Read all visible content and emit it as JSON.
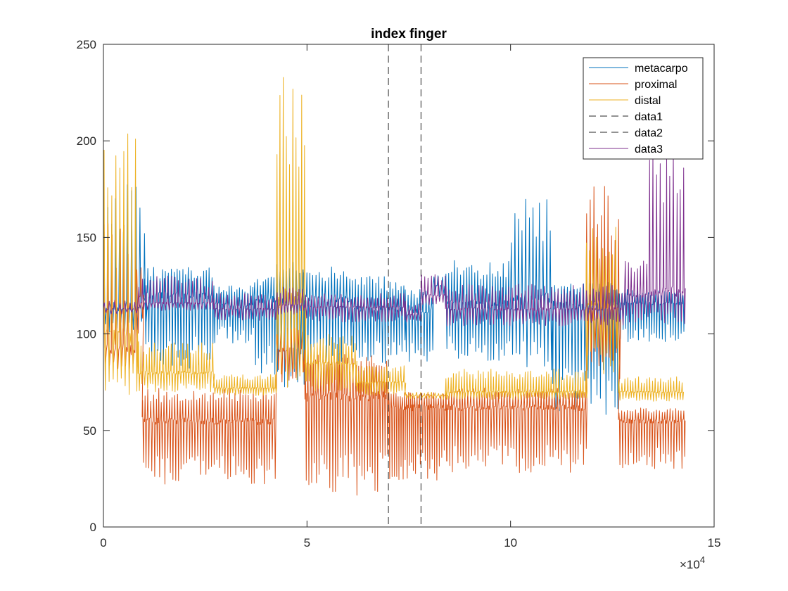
{
  "chart_data": {
    "type": "line",
    "title": "index finger",
    "xlabel": "",
    "ylabel": "",
    "xlim": [
      0,
      150000
    ],
    "ylim": [
      0,
      250
    ],
    "x_ticks": [
      0,
      50000,
      100000,
      150000
    ],
    "x_tick_labels": [
      "0",
      "5",
      "10",
      "15"
    ],
    "x_exponent_label": "×10",
    "x_exponent_power": "4",
    "y_ticks": [
      0,
      50,
      100,
      150,
      200,
      250
    ],
    "y_tick_labels": [
      "0",
      "50",
      "100",
      "150",
      "200",
      "250"
    ],
    "grid": false,
    "legend_position": "top-right",
    "series": [
      {
        "name": "metacarpo",
        "color": "#0072BD",
        "style": "solid",
        "segments": [
          {
            "x": [
              0,
              10000
            ],
            "base": 115,
            "high": 180,
            "low": 100,
            "period": 1000
          },
          {
            "x": [
              10000,
              27000
            ],
            "base": 120,
            "high": 135,
            "low": 82,
            "period": 700
          },
          {
            "x": [
              27000,
              37000
            ],
            "base": 115,
            "high": 125,
            "low": 95,
            "period": 650
          },
          {
            "x": [
              37000,
              42500
            ],
            "base": 118,
            "high": 130,
            "low": 78,
            "period": 650
          },
          {
            "x": [
              42500,
              49000
            ],
            "base": 118,
            "high": 140,
            "low": 72,
            "period": 750
          },
          {
            "x": [
              49000,
              61000
            ],
            "base": 118,
            "high": 135,
            "low": 83,
            "period": 750
          },
          {
            "x": [
              61000,
              74000
            ],
            "base": 113,
            "high": 130,
            "low": 84,
            "period": 700
          },
          {
            "x": [
              74000,
              81000
            ],
            "base": 112,
            "high": 123,
            "low": 82,
            "period": 700
          },
          {
            "x": [
              81000,
              84000
            ],
            "base": 125,
            "high": 132,
            "low": 118,
            "period": 1000
          },
          {
            "x": [
              84000,
              100000
            ],
            "base": 116,
            "high": 138,
            "low": 86,
            "period": 700
          },
          {
            "x": [
              100000,
              110000
            ],
            "base": 118,
            "high": 170,
            "low": 80,
            "period": 850
          },
          {
            "x": [
              110000,
              126000
            ],
            "base": 115,
            "high": 128,
            "low": 58,
            "period": 750
          },
          {
            "x": [
              126000,
              142500
            ],
            "base": 116,
            "high": 123,
            "low": 96,
            "period": 650
          }
        ]
      },
      {
        "name": "proximal",
        "color": "#D95319",
        "style": "solid",
        "segments": [
          {
            "x": [
              0,
              8000
            ],
            "base": 92,
            "high": 160,
            "low": 82,
            "period": 1000
          },
          {
            "x": [
              8000,
              9500
            ],
            "base": 120,
            "high": 140,
            "low": 100,
            "period": 1000
          },
          {
            "x": [
              9500,
              42500
            ],
            "base": 55,
            "high": 72,
            "low": 22,
            "period": 650
          },
          {
            "x": [
              42500,
              49500
            ],
            "base": 92,
            "high": 105,
            "low": 75,
            "period": 900
          },
          {
            "x": [
              49500,
              70000
            ],
            "base": 68,
            "high": 90,
            "low": 16,
            "period": 650
          },
          {
            "x": [
              70000,
              84000
            ],
            "base": 62,
            "high": 70,
            "low": 24,
            "period": 550
          },
          {
            "x": [
              84000,
              118500
            ],
            "base": 62,
            "high": 72,
            "low": 28,
            "period": 700
          },
          {
            "x": [
              118500,
              126500
            ],
            "base": 110,
            "high": 177,
            "low": 76,
            "period": 850
          },
          {
            "x": [
              126500,
              142500
            ],
            "base": 55,
            "high": 62,
            "low": 30,
            "period": 650
          }
        ]
      },
      {
        "name": "distal",
        "color": "#EDB120",
        "style": "solid",
        "segments": [
          {
            "x": [
              0,
              8500
            ],
            "base": 100,
            "high": 210,
            "low": 66,
            "period": 900
          },
          {
            "x": [
              8500,
              27000
            ],
            "base": 80,
            "high": 96,
            "low": 70,
            "period": 700
          },
          {
            "x": [
              27000,
              42500
            ],
            "base": 72,
            "high": 79,
            "low": 68,
            "period": 650
          },
          {
            "x": [
              42500,
              49500
            ],
            "base": 120,
            "high": 237,
            "low": 70,
            "period": 750
          },
          {
            "x": [
              49500,
              62000
            ],
            "base": 85,
            "high": 100,
            "low": 70,
            "period": 700
          },
          {
            "x": [
              62000,
              74000
            ],
            "base": 75,
            "high": 84,
            "low": 68,
            "period": 700
          },
          {
            "x": [
              74000,
              84000
            ],
            "base": 68,
            "high": 70,
            "low": 66,
            "period": 900
          },
          {
            "x": [
              84000,
              118500
            ],
            "base": 70,
            "high": 82,
            "low": 66,
            "period": 650
          },
          {
            "x": [
              118500,
              126500
            ],
            "base": 115,
            "high": 157,
            "low": 78,
            "period": 800
          },
          {
            "x": [
              126500,
              142500
            ],
            "base": 70,
            "high": 78,
            "low": 65,
            "period": 650
          }
        ]
      },
      {
        "name": "data1",
        "color": "#262626",
        "style": "dashed",
        "vertical_x": 70000
      },
      {
        "name": "data2",
        "color": "#262626",
        "style": "dashed",
        "vertical_x": 78000
      },
      {
        "name": "data3",
        "color": "#7E2F8E",
        "style": "solid",
        "segments": [
          {
            "x": [
              0,
              8500
            ],
            "base": 113,
            "high": 118,
            "low": 110,
            "period": 1200
          },
          {
            "x": [
              8500,
              27000
            ],
            "base": 116,
            "high": 130,
            "low": 112,
            "period": 900
          },
          {
            "x": [
              27000,
              42500
            ],
            "base": 113,
            "high": 121,
            "low": 107,
            "period": 800
          },
          {
            "x": [
              42500,
              49500
            ],
            "base": 115,
            "high": 125,
            "low": 110,
            "period": 800
          },
          {
            "x": [
              49500,
              74000
            ],
            "base": 114,
            "high": 121,
            "low": 106,
            "period": 800
          },
          {
            "x": [
              74000,
              78000
            ],
            "base": 110,
            "high": 117,
            "low": 106,
            "period": 800
          },
          {
            "x": [
              78000,
              84000
            ],
            "base": 120,
            "high": 131,
            "low": 115,
            "period": 900
          },
          {
            "x": [
              84000,
              128000
            ],
            "base": 113,
            "high": 126,
            "low": 104,
            "period": 800
          },
          {
            "x": [
              128000,
              134000
            ],
            "base": 120,
            "high": 138,
            "low": 106,
            "period": 750
          },
          {
            "x": [
              134000,
              142500
            ],
            "base": 122,
            "high": 195,
            "low": 105,
            "period": 850
          }
        ]
      }
    ]
  }
}
